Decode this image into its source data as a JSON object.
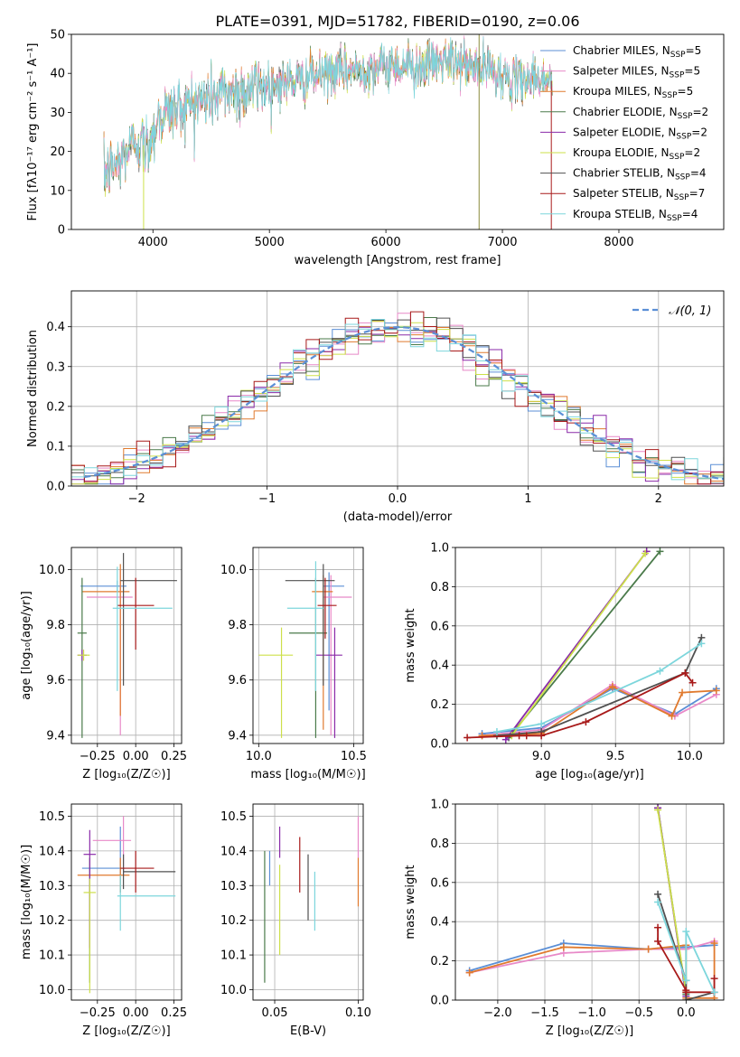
{
  "title": "PLATE=0391, MJD=51782, FIBERID=0190, z=0.06",
  "colors": {
    "chabrier_miles": "#5b8fd6",
    "salpeter_miles": "#e889c8",
    "kroupa_miles": "#e07a2e",
    "chabrier_elodie": "#4a7a4a",
    "salpeter_elodie": "#8a2aa8",
    "kroupa_elodie": "#cde04a",
    "chabrier_stelib": "#505050",
    "salpeter_stelib": "#a81a1a",
    "kroupa_stelib": "#7dd6dc",
    "normal": "#5b8fd6"
  },
  "chart_data": [
    {
      "id": "spectrum",
      "type": "line",
      "title": "PLATE=0391, MJD=51782, FIBERID=0190, z=0.06",
      "xlabel": "wavelength [Angstrom, rest frame]",
      "ylabel": "Flux [fλ10⁻¹⁷ erg cm⁻² s⁻¹ A⁻¹]",
      "xlim": [
        3300,
        8900
      ],
      "ylim": [
        0,
        50
      ],
      "xticks": [
        4000,
        5000,
        6000,
        7000,
        8000
      ],
      "yticks": [
        0,
        10,
        20,
        30,
        40,
        50
      ],
      "legend_position": "right",
      "legend": [
        {
          "label": "Chabrier MILES, N_SSP=5",
          "color": "#5b8fd6"
        },
        {
          "label": "Salpeter MILES, N_SSP=5",
          "color": "#e889c8"
        },
        {
          "label": "Kroupa MILES, N_SSP=5",
          "color": "#e07a2e"
        },
        {
          "label": "Chabrier ELODIE, N_SSP=2",
          "color": "#4a7a4a"
        },
        {
          "label": "Salpeter ELODIE, N_SSP=2",
          "color": "#8a2aa8"
        },
        {
          "label": "Kroupa ELODIE, N_SSP=2",
          "color": "#cde04a"
        },
        {
          "label": "Chabrier STELIB, N_SSP=4",
          "color": "#505050"
        },
        {
          "label": "Salpeter STELIB, N_SSP=7",
          "color": "#a81a1a"
        },
        {
          "label": "Kroupa STELIB, N_SSP=4",
          "color": "#7dd6dc"
        }
      ],
      "continuum": [
        [
          3580,
          14
        ],
        [
          3700,
          17
        ],
        [
          3850,
          23
        ],
        [
          3950,
          21
        ],
        [
          4050,
          29
        ],
        [
          4200,
          31
        ],
        [
          4400,
          33
        ],
        [
          4600,
          35
        ],
        [
          4800,
          36
        ],
        [
          5000,
          37
        ],
        [
          5200,
          38
        ],
        [
          5500,
          40
        ],
        [
          5800,
          41
        ],
        [
          6000,
          42
        ],
        [
          6300,
          42
        ],
        [
          6500,
          43
        ],
        [
          6700,
          42
        ],
        [
          6900,
          41
        ],
        [
          7100,
          38
        ],
        [
          7300,
          39
        ],
        [
          7430,
          38
        ]
      ],
      "spikes": [
        [
          3920,
          0
        ],
        [
          6800,
          0
        ],
        [
          6800,
          50
        ],
        [
          7420,
          0
        ]
      ]
    },
    {
      "id": "residuals",
      "type": "histogram",
      "xlabel": "(data-model)/error",
      "ylabel": "Normed distribution",
      "xlim": [
        -2.5,
        2.5
      ],
      "ylim": [
        0,
        0.49
      ],
      "xticks": [
        -2,
        -1,
        0,
        1,
        2
      ],
      "yticks": [
        0.0,
        0.1,
        0.2,
        0.3,
        0.4
      ],
      "legend_position": "top-right",
      "curve_label": "𝒩(0, 1)",
      "bin_width": 0.1
    },
    {
      "id": "age_vs_Z",
      "type": "errorbar",
      "xlabel": "Z [log₁₀(Z/Z☉)]",
      "ylabel": "age  [log₁₀(age/yr)]",
      "xlim": [
        -0.42,
        0.3
      ],
      "ylim": [
        9.37,
        10.08
      ],
      "xticks": [
        -0.25,
        0.0,
        0.25
      ],
      "yticks": [
        9.4,
        9.6,
        9.8,
        10.0
      ],
      "points": [
        {
          "series": "chabrier_miles",
          "x": -0.12,
          "xerr": [
            0.24,
            0.06
          ],
          "y": 9.94,
          "yerr": [
            0.02,
            0.02
          ]
        },
        {
          "series": "salpeter_miles",
          "x": -0.1,
          "xerr": [
            0.22,
            0.08
          ],
          "y": 9.9,
          "yerr": [
            0.5,
            0.1
          ]
        },
        {
          "series": "kroupa_miles",
          "x": -0.1,
          "xerr": [
            0.25,
            0.06
          ],
          "y": 9.92,
          "yerr": [
            0.45,
            0.1
          ]
        },
        {
          "series": "chabrier_elodie",
          "x": -0.35,
          "xerr": [
            0.03,
            0.03
          ],
          "y": 9.77,
          "yerr": [
            0.38,
            0.2
          ]
        },
        {
          "series": "salpeter_elodie",
          "x": -0.35,
          "xerr": [
            0.03,
            0.03
          ],
          "y": 9.69,
          "yerr": [
            0.02,
            0.02
          ]
        },
        {
          "series": "kroupa_elodie",
          "x": -0.34,
          "xerr": [
            0.04,
            0.04
          ],
          "y": 9.69,
          "yerr": [
            0.02,
            0.02
          ]
        },
        {
          "series": "chabrier_stelib",
          "x": -0.08,
          "xerr": [
            0.02,
            0.35
          ],
          "y": 9.96,
          "yerr": [
            0.38,
            0.1
          ]
        },
        {
          "series": "salpeter_stelib",
          "x": 0.0,
          "xerr": [
            0.12,
            0.12
          ],
          "y": 9.87,
          "yerr": [
            0.16,
            0.1
          ]
        },
        {
          "series": "kroupa_stelib",
          "x": -0.12,
          "xerr": [
            0.03,
            0.36
          ],
          "y": 9.86,
          "yerr": [
            0.3,
            0.15
          ]
        }
      ]
    },
    {
      "id": "age_vs_mass",
      "type": "errorbar",
      "xlabel": "mass [log₁₀(M/M☉)]",
      "ylabel": "",
      "xlim": [
        9.97,
        10.55
      ],
      "ylim": [
        9.37,
        10.08
      ],
      "xticks": [
        10.0,
        10.5
      ],
      "yticks": [
        9.4,
        9.6,
        9.8,
        10.0
      ],
      "points": [
        {
          "series": "chabrier_miles",
          "x": 10.37,
          "xerr": [
            0.03,
            0.08
          ],
          "y": 9.94,
          "yerr": [
            0.45,
            0.05
          ]
        },
        {
          "series": "salpeter_miles",
          "x": 10.38,
          "xerr": [
            0.04,
            0.11
          ],
          "y": 9.9,
          "yerr": [
            0.5,
            0.08
          ]
        },
        {
          "series": "kroupa_miles",
          "x": 10.34,
          "xerr": [
            0.06,
            0.05
          ],
          "y": 9.92,
          "yerr": [
            0.5,
            0.06
          ]
        },
        {
          "series": "chabrier_elodie",
          "x": 10.3,
          "xerr": [
            0.14,
            0.06
          ],
          "y": 9.77,
          "yerr": [
            0.38,
            0.2
          ]
        },
        {
          "series": "salpeter_elodie",
          "x": 10.4,
          "xerr": [
            0.1,
            0.04
          ],
          "y": 9.69,
          "yerr": [
            0.3,
            0.1
          ]
        },
        {
          "series": "kroupa_elodie",
          "x": 10.12,
          "xerr": [
            0.12,
            0.06
          ],
          "y": 9.69,
          "yerr": [
            0.3,
            0.1
          ]
        },
        {
          "series": "chabrier_stelib",
          "x": 10.34,
          "xerr": [
            0.2,
            0.06
          ],
          "y": 9.96,
          "yerr": [
            0.38,
            0.06
          ]
        },
        {
          "series": "salpeter_stelib",
          "x": 10.35,
          "xerr": [
            0.04,
            0.06
          ],
          "y": 9.87,
          "yerr": [
            0.12,
            0.1
          ]
        },
        {
          "series": "kroupa_stelib",
          "x": 10.3,
          "xerr": [
            0.15,
            0.04
          ],
          "y": 9.86,
          "yerr": [
            0.3,
            0.17
          ]
        }
      ]
    },
    {
      "id": "sfh_age",
      "type": "line",
      "xlabel": "age  [log₁₀(age/yr)]",
      "ylabel": "mass weight",
      "xlim": [
        8.42,
        10.23
      ],
      "ylim": [
        0,
        1.0
      ],
      "xticks": [
        9.0,
        9.5,
        10.0
      ],
      "yticks": [
        0.0,
        0.2,
        0.4,
        0.6,
        0.8,
        1.0
      ],
      "series": [
        {
          "name": "chabrier_miles",
          "x": [
            8.6,
            9.0,
            9.48,
            9.9,
            10.18
          ],
          "y": [
            0.05,
            0.08,
            0.28,
            0.15,
            0.28
          ]
        },
        {
          "name": "salpeter_miles",
          "x": [
            8.6,
            9.0,
            9.48,
            9.9,
            10.18
          ],
          "y": [
            0.04,
            0.07,
            0.3,
            0.14,
            0.25
          ]
        },
        {
          "name": "kroupa_miles",
          "x": [
            8.6,
            9.0,
            9.48,
            9.88,
            9.95,
            10.18
          ],
          "y": [
            0.04,
            0.05,
            0.29,
            0.14,
            0.26,
            0.27
          ]
        },
        {
          "name": "chabrier_elodie",
          "x": [
            8.78,
            9.8
          ],
          "y": [
            0.03,
            0.98
          ]
        },
        {
          "name": "salpeter_elodie",
          "x": [
            8.76,
            9.71
          ],
          "y": [
            0.02,
            0.98
          ]
        },
        {
          "name": "kroupa_elodie",
          "x": [
            8.8,
            9.7
          ],
          "y": [
            0.04,
            0.97
          ]
        },
        {
          "name": "chabrier_stelib",
          "x": [
            8.7,
            9.0,
            9.97,
            10.08
          ],
          "y": [
            0.04,
            0.06,
            0.36,
            0.54
          ]
        },
        {
          "name": "salpeter_stelib",
          "x": [
            8.5,
            8.85,
            8.9,
            9.0,
            9.3,
            9.97,
            10.02
          ],
          "y": [
            0.03,
            0.04,
            0.04,
            0.04,
            0.11,
            0.36,
            0.31
          ]
        },
        {
          "name": "kroupa_stelib",
          "x": [
            8.7,
            9.0,
            9.8,
            10.08
          ],
          "y": [
            0.06,
            0.1,
            0.37,
            0.51
          ]
        }
      ]
    },
    {
      "id": "mass_vs_Z",
      "type": "errorbar",
      "xlabel": "Z [log₁₀(Z/Z☉)]",
      "ylabel": "mass [log₁₀(M/M☉)]",
      "xlim": [
        -0.42,
        0.3
      ],
      "ylim": [
        9.97,
        10.535
      ],
      "xticks": [
        -0.25,
        0.0,
        0.25
      ],
      "yticks": [
        10.0,
        10.1,
        10.2,
        10.3,
        10.4,
        10.5
      ],
      "points": [
        {
          "series": "chabrier_miles",
          "x": -0.1,
          "xerr": [
            0.25,
            0.03
          ],
          "y": 10.35,
          "yerr": [
            0.07,
            0.12
          ]
        },
        {
          "series": "salpeter_miles",
          "x": -0.08,
          "xerr": [
            0.2,
            0.05
          ],
          "y": 10.43,
          "yerr": [
            0.1,
            0.07
          ]
        },
        {
          "series": "kroupa_miles",
          "x": -0.1,
          "xerr": [
            0.28,
            0.06
          ],
          "y": 10.33,
          "yerr": [
            0.05,
            0.05
          ]
        },
        {
          "series": "chabrier_elodie",
          "x": -0.3,
          "xerr": [
            0.0,
            0.0
          ],
          "y": 10.33,
          "yerr": [
            0.31,
            0.05
          ]
        },
        {
          "series": "salpeter_elodie",
          "x": -0.3,
          "xerr": [
            0.04,
            0.04
          ],
          "y": 10.39,
          "yerr": [
            0.27,
            0.07
          ]
        },
        {
          "series": "kroupa_elodie",
          "x": -0.3,
          "xerr": [
            0.04,
            0.04
          ],
          "y": 10.28,
          "yerr": [
            0.29,
            0.04
          ]
        },
        {
          "series": "chabrier_stelib",
          "x": -0.08,
          "xerr": [
            0.0,
            0.34
          ],
          "y": 10.34,
          "yerr": [
            0.05,
            0.05
          ]
        },
        {
          "series": "salpeter_stelib",
          "x": 0.0,
          "xerr": [
            0.1,
            0.12
          ],
          "y": 10.35,
          "yerr": [
            0.07,
            0.05
          ]
        },
        {
          "series": "kroupa_stelib",
          "x": -0.1,
          "xerr": [
            0.02,
            0.36
          ],
          "y": 10.27,
          "yerr": [
            0.1,
            0.06
          ]
        }
      ]
    },
    {
      "id": "mass_vs_ebv",
      "type": "errorbar",
      "xlabel": "E(B-V)",
      "ylabel": "",
      "xlim": [
        0.037,
        0.103
      ],
      "ylim": [
        9.97,
        10.535
      ],
      "xticks": [
        0.05,
        0.1
      ],
      "yticks": [
        10.0,
        10.1,
        10.2,
        10.3,
        10.4,
        10.5
      ],
      "points": [
        {
          "series": "chabrier_miles",
          "x": 0.047,
          "y": 10.35,
          "yerr": [
            0.05,
            0.05
          ]
        },
        {
          "series": "salpeter_miles",
          "x": 0.1,
          "y": 10.43,
          "yerr": [
            0.05,
            0.07
          ]
        },
        {
          "series": "kroupa_miles",
          "x": 0.1,
          "y": 10.34,
          "yerr": [
            0.1,
            0.04
          ]
        },
        {
          "series": "chabrier_elodie",
          "x": 0.044,
          "y": 10.2,
          "yerr": [
            0.18,
            0.2
          ]
        },
        {
          "series": "salpeter_elodie",
          "x": 0.053,
          "y": 10.43,
          "yerr": [
            0.05,
            0.04
          ]
        },
        {
          "series": "kroupa_elodie",
          "x": 0.053,
          "y": 10.2,
          "yerr": [
            0.1,
            0.16
          ]
        },
        {
          "series": "chabrier_stelib",
          "x": 0.07,
          "y": 10.3,
          "yerr": [
            0.1,
            0.09
          ]
        },
        {
          "series": "salpeter_stelib",
          "x": 0.065,
          "y": 10.36,
          "yerr": [
            0.08,
            0.08
          ]
        },
        {
          "series": "kroupa_stelib",
          "x": 0.074,
          "y": 10.25,
          "yerr": [
            0.08,
            0.09
          ]
        }
      ]
    },
    {
      "id": "sfh_Z",
      "type": "line",
      "xlabel": "Z [log₁₀(Z/Z☉)]",
      "ylabel": "mass weight",
      "xlim": [
        -2.45,
        0.4
      ],
      "ylim": [
        0,
        1.0
      ],
      "xticks": [
        -2.0,
        -1.5,
        -1.0,
        -0.5,
        0.0
      ],
      "yticks": [
        0.0,
        0.2,
        0.4,
        0.6,
        0.8,
        1.0
      ],
      "series": [
        {
          "name": "chabrier_miles",
          "x": [
            -2.3,
            -1.3,
            -0.4,
            0.0,
            0.3
          ],
          "y": [
            0.15,
            0.29,
            0.26,
            0.27,
            0.28
          ]
        },
        {
          "name": "salpeter_miles",
          "x": [
            -2.3,
            -1.3,
            -0.4,
            0.0,
            0.3
          ],
          "y": [
            0.14,
            0.24,
            0.26,
            0.26,
            0.3
          ]
        },
        {
          "name": "kroupa_miles",
          "x": [
            -2.3,
            -1.3,
            -0.4,
            0.0,
            0.0,
            0.3,
            0.3
          ],
          "y": [
            0.14,
            0.27,
            0.26,
            0.28,
            0.01,
            0.01,
            0.29
          ]
        },
        {
          "name": "chabrier_elodie",
          "x": [
            -0.3,
            0.0
          ],
          "y": [
            0.98,
            0.03
          ]
        },
        {
          "name": "salpeter_elodie",
          "x": [
            -0.3,
            0.0
          ],
          "y": [
            0.98,
            0.02
          ]
        },
        {
          "name": "kroupa_elodie",
          "x": [
            -0.3,
            0.0
          ],
          "y": [
            0.97,
            0.04
          ]
        },
        {
          "name": "chabrier_stelib",
          "x": [
            -0.3,
            0.0,
            0.0,
            0.3
          ],
          "y": [
            0.54,
            0.1,
            0.0,
            0.04
          ]
        },
        {
          "name": "salpeter_stelib",
          "x": [
            -0.3,
            -0.3,
            0.0,
            0.0,
            0.3,
            0.3
          ],
          "y": [
            0.37,
            0.3,
            0.05,
            0.04,
            0.04,
            0.11
          ]
        },
        {
          "name": "kroupa_stelib",
          "x": [
            -0.3,
            0.0,
            0.0,
            0.3
          ],
          "y": [
            0.5,
            0.1,
            0.35,
            0.04
          ]
        }
      ]
    }
  ]
}
